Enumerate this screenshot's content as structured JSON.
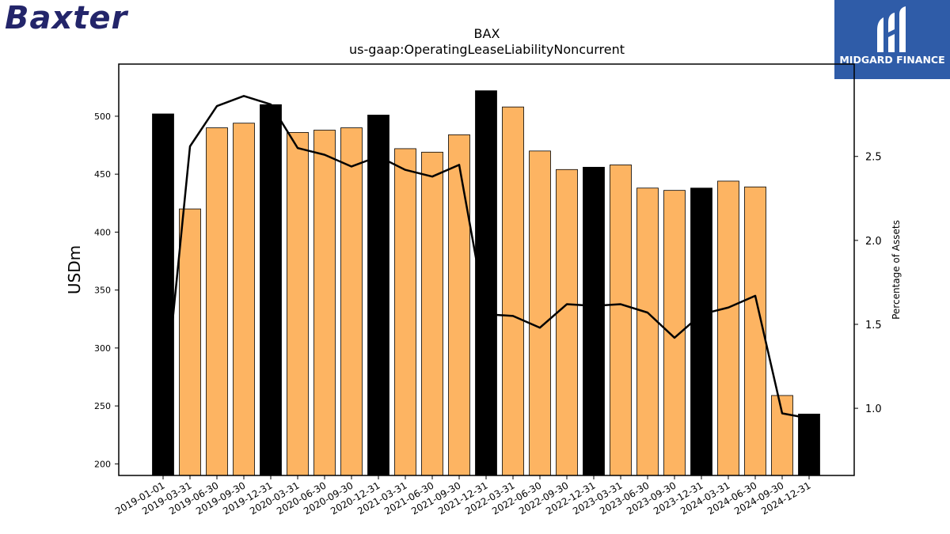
{
  "branding": {
    "company_logo_text": "Baxter",
    "partner_logo_text": "MIDGARD FINANCE",
    "partner_color": "#2f5ca8",
    "company_color": "#23256a"
  },
  "chart_data": {
    "type": "bar",
    "title": "BAX",
    "subtitle": "us-gaap:OperatingLeaseLiabilityNoncurrent",
    "ylabel": "USDm",
    "y2label": "Percentage of Assets",
    "ylim": [
      190,
      545
    ],
    "y2lim": [
      0.6,
      3.05
    ],
    "yticks": [
      200,
      250,
      300,
      350,
      400,
      450,
      500
    ],
    "y2ticks": [
      1.0,
      1.5,
      2.0,
      2.5
    ],
    "categories": [
      "2019-01-01",
      "2019-03-31",
      "2019-06-30",
      "2019-09-30",
      "2019-12-31",
      "2020-03-31",
      "2020-06-30",
      "2020-09-30",
      "2020-12-31",
      "2021-03-31",
      "2021-06-30",
      "2021-09-30",
      "2021-12-31",
      "2022-03-31",
      "2022-06-30",
      "2022-09-30",
      "2022-12-31",
      "2023-03-31",
      "2023-06-30",
      "2023-09-30",
      "2023-12-31",
      "2024-03-31",
      "2024-06-30",
      "2024-09-30",
      "2024-12-31"
    ],
    "series": [
      {
        "type": "bar",
        "values": [
          502,
          420,
          490,
          494,
          510,
          486,
          488,
          490,
          501,
          472,
          469,
          484,
          522,
          508,
          470,
          454,
          456,
          458,
          438,
          436,
          438,
          444,
          439,
          259,
          243
        ]
      },
      {
        "type": "line",
        "axis": "right",
        "values": [
          0.95,
          2.56,
          2.8,
          2.86,
          2.81,
          2.55,
          2.51,
          2.44,
          2.5,
          2.42,
          2.38,
          2.45,
          1.56,
          1.55,
          1.48,
          1.62,
          1.61,
          1.62,
          1.57,
          1.42,
          1.56,
          1.6,
          1.67,
          0.97,
          0.94
        ]
      }
    ],
    "annual_color": "#000000",
    "quarter_color": "#fdb462",
    "line_color": "#000000",
    "grid": false,
    "legend": "none"
  }
}
